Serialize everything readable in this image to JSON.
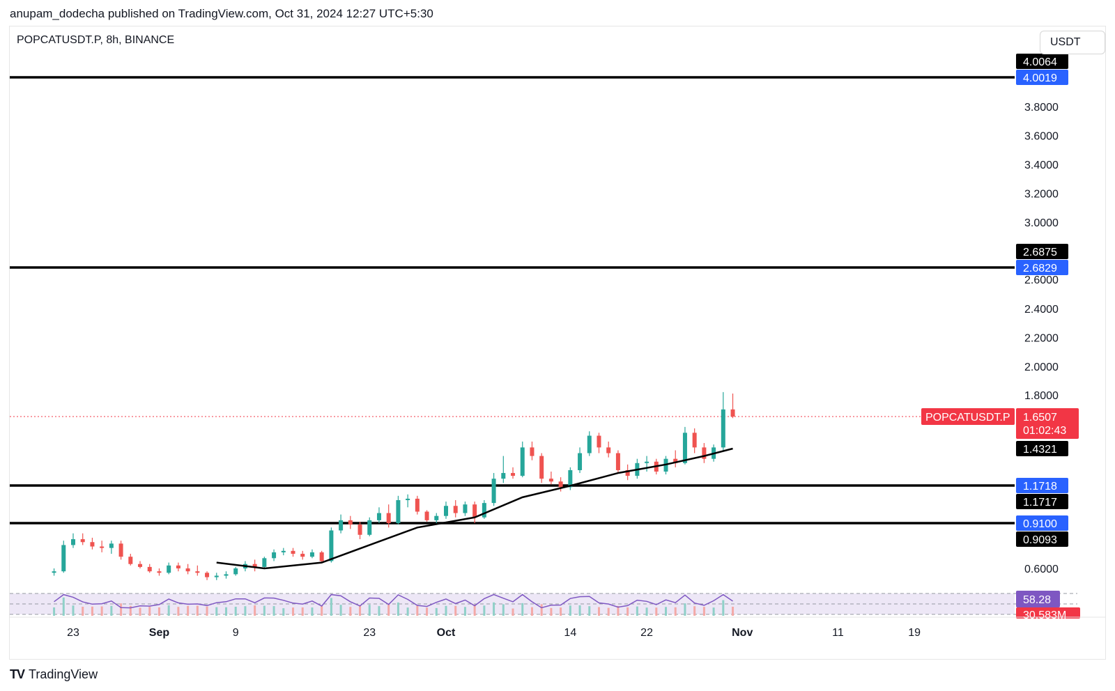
{
  "header": {
    "published_text": "anupam_dodecha published on TradingView.com, Oct 31, 2024 12:27 UTC+5:30"
  },
  "chart": {
    "symbol_line": "POPCATUSDT.P, 8h, BINANCE",
    "currency": "USDT"
  },
  "footer": {
    "logo": "TV",
    "brand": "TradingView"
  },
  "colors": {
    "up": "#26a69a",
    "down": "#ef5350",
    "ma": "#000000",
    "level": "#000000",
    "blue_tag": "#2962ff",
    "black_tag": "#000000",
    "last_price": "#f23645",
    "rsi": "#7e57c2",
    "rsi_ma": "#f7e14a",
    "rsi_bg": "#ede7f6"
  },
  "chart_data": {
    "type": "candlestick",
    "ylim": [
      0.5,
      4.15
    ],
    "y_ticks": [
      "3.8000",
      "3.6000",
      "3.4000",
      "3.2000",
      "3.0000",
      "2.6000",
      "2.4000",
      "2.2000",
      "2.0000",
      "1.8000",
      "0.6000"
    ],
    "x_ticks": [
      {
        "label": "23",
        "bold": false,
        "date": "2024-08-23"
      },
      {
        "label": "Sep",
        "bold": true,
        "date": "2024-09-01"
      },
      {
        "label": "9",
        "bold": false,
        "date": "2024-09-09"
      },
      {
        "label": "23",
        "bold": false,
        "date": "2024-09-23"
      },
      {
        "label": "Oct",
        "bold": true,
        "date": "2024-10-01"
      },
      {
        "label": "14",
        "bold": false,
        "date": "2024-10-14"
      },
      {
        "label": "22",
        "bold": false,
        "date": "2024-10-22"
      },
      {
        "label": "Nov",
        "bold": true,
        "date": "2024-11-01"
      },
      {
        "label": "11",
        "bold": false,
        "date": "2024-11-11"
      },
      {
        "label": "19",
        "bold": false,
        "date": "2024-11-19"
      }
    ],
    "horizontal_levels": [
      {
        "value": 4.0019,
        "tags": [
          {
            "text": "4.0064",
            "style": "black"
          },
          {
            "text": "4.0019",
            "style": "blue"
          }
        ]
      },
      {
        "value": 2.6829,
        "tags": [
          {
            "text": "2.6875",
            "style": "black"
          },
          {
            "text": "2.6829",
            "style": "blue"
          }
        ]
      },
      {
        "value": 1.1718,
        "tags": [
          {
            "text": "1.1718",
            "style": "blue"
          },
          {
            "text": "1.1717",
            "style": "black"
          }
        ]
      },
      {
        "value": 0.91,
        "tags": [
          {
            "text": "0.9100",
            "style": "blue"
          },
          {
            "text": "0.9093",
            "style": "black"
          }
        ]
      }
    ],
    "last_price": {
      "value": 1.6507,
      "symbol": "POPCATUSDT.P",
      "text": "1.6507",
      "countdown": "01:02:43"
    },
    "moving_average": {
      "last_text": "1.4321",
      "last_value": 1.4321
    },
    "rsi": {
      "value_text": "58.28"
    },
    "volume": {
      "value_text": "30.583M"
    },
    "candles": [
      {
        "date": "2024-08-21",
        "o": 0.57,
        "h": 0.6,
        "l": 0.55,
        "c": 0.58
      },
      {
        "date": "2024-08-22",
        "o": 0.58,
        "h": 0.79,
        "l": 0.57,
        "c": 0.76
      },
      {
        "date": "2024-08-23",
        "o": 0.76,
        "h": 0.84,
        "l": 0.74,
        "c": 0.8
      },
      {
        "date": "2024-08-24",
        "o": 0.8,
        "h": 0.84,
        "l": 0.76,
        "c": 0.78
      },
      {
        "date": "2024-08-25",
        "o": 0.78,
        "h": 0.81,
        "l": 0.73,
        "c": 0.75
      },
      {
        "date": "2024-08-26",
        "o": 0.75,
        "h": 0.79,
        "l": 0.71,
        "c": 0.74
      },
      {
        "date": "2024-08-27",
        "o": 0.74,
        "h": 0.79,
        "l": 0.7,
        "c": 0.77
      },
      {
        "date": "2024-08-28",
        "o": 0.77,
        "h": 0.79,
        "l": 0.66,
        "c": 0.68
      },
      {
        "date": "2024-08-29",
        "o": 0.68,
        "h": 0.7,
        "l": 0.62,
        "c": 0.63
      },
      {
        "date": "2024-08-30",
        "o": 0.63,
        "h": 0.65,
        "l": 0.6,
        "c": 0.61
      },
      {
        "date": "2024-08-31",
        "o": 0.61,
        "h": 0.63,
        "l": 0.57,
        "c": 0.58
      },
      {
        "date": "2024-09-01",
        "o": 0.58,
        "h": 0.6,
        "l": 0.55,
        "c": 0.57
      },
      {
        "date": "2024-09-02",
        "o": 0.57,
        "h": 0.64,
        "l": 0.56,
        "c": 0.62
      },
      {
        "date": "2024-09-03",
        "o": 0.62,
        "h": 0.64,
        "l": 0.58,
        "c": 0.6
      },
      {
        "date": "2024-09-04",
        "o": 0.6,
        "h": 0.63,
        "l": 0.56,
        "c": 0.58
      },
      {
        "date": "2024-09-05",
        "o": 0.58,
        "h": 0.62,
        "l": 0.55,
        "c": 0.57
      },
      {
        "date": "2024-09-06",
        "o": 0.57,
        "h": 0.58,
        "l": 0.52,
        "c": 0.54
      },
      {
        "date": "2024-09-07",
        "o": 0.54,
        "h": 0.57,
        "l": 0.52,
        "c": 0.55
      },
      {
        "date": "2024-09-08",
        "o": 0.55,
        "h": 0.58,
        "l": 0.53,
        "c": 0.56
      },
      {
        "date": "2024-09-09",
        "o": 0.56,
        "h": 0.61,
        "l": 0.55,
        "c": 0.6
      },
      {
        "date": "2024-09-10",
        "o": 0.6,
        "h": 0.65,
        "l": 0.58,
        "c": 0.63
      },
      {
        "date": "2024-09-11",
        "o": 0.63,
        "h": 0.66,
        "l": 0.58,
        "c": 0.61
      },
      {
        "date": "2024-09-12",
        "o": 0.61,
        "h": 0.68,
        "l": 0.6,
        "c": 0.67
      },
      {
        "date": "2024-09-13",
        "o": 0.67,
        "h": 0.73,
        "l": 0.65,
        "c": 0.71
      },
      {
        "date": "2024-09-14",
        "o": 0.71,
        "h": 0.74,
        "l": 0.69,
        "c": 0.72
      },
      {
        "date": "2024-09-15",
        "o": 0.72,
        "h": 0.74,
        "l": 0.68,
        "c": 0.7
      },
      {
        "date": "2024-09-16",
        "o": 0.7,
        "h": 0.72,
        "l": 0.66,
        "c": 0.68
      },
      {
        "date": "2024-09-17",
        "o": 0.68,
        "h": 0.73,
        "l": 0.67,
        "c": 0.71
      },
      {
        "date": "2024-09-18",
        "o": 0.71,
        "h": 0.72,
        "l": 0.64,
        "c": 0.65
      },
      {
        "date": "2024-09-19",
        "o": 0.65,
        "h": 0.88,
        "l": 0.64,
        "c": 0.86
      },
      {
        "date": "2024-09-20",
        "o": 0.86,
        "h": 0.97,
        "l": 0.84,
        "c": 0.93
      },
      {
        "date": "2024-09-21",
        "o": 0.93,
        "h": 0.96,
        "l": 0.87,
        "c": 0.9
      },
      {
        "date": "2024-09-22",
        "o": 0.9,
        "h": 0.92,
        "l": 0.8,
        "c": 0.83
      },
      {
        "date": "2024-09-23",
        "o": 0.83,
        "h": 0.95,
        "l": 0.82,
        "c": 0.93
      },
      {
        "date": "2024-09-24",
        "o": 0.93,
        "h": 1.02,
        "l": 0.91,
        "c": 0.98
      },
      {
        "date": "2024-09-25",
        "o": 0.98,
        "h": 1.04,
        "l": 0.88,
        "c": 0.91
      },
      {
        "date": "2024-09-26",
        "o": 0.91,
        "h": 1.1,
        "l": 0.9,
        "c": 1.07
      },
      {
        "date": "2024-09-27",
        "o": 1.07,
        "h": 1.11,
        "l": 1.02,
        "c": 1.08
      },
      {
        "date": "2024-09-28",
        "o": 1.08,
        "h": 1.1,
        "l": 0.97,
        "c": 0.99
      },
      {
        "date": "2024-09-29",
        "o": 0.99,
        "h": 1.0,
        "l": 0.92,
        "c": 0.93
      },
      {
        "date": "2024-09-30",
        "o": 0.93,
        "h": 0.98,
        "l": 0.91,
        "c": 0.96
      },
      {
        "date": "2024-10-01",
        "o": 0.96,
        "h": 1.06,
        "l": 0.94,
        "c": 1.03
      },
      {
        "date": "2024-10-02",
        "o": 1.03,
        "h": 1.07,
        "l": 0.95,
        "c": 0.98
      },
      {
        "date": "2024-10-03",
        "o": 0.98,
        "h": 1.06,
        "l": 0.96,
        "c": 1.04
      },
      {
        "date": "2024-10-04",
        "o": 1.04,
        "h": 1.06,
        "l": 0.91,
        "c": 0.95
      },
      {
        "date": "2024-10-05",
        "o": 0.95,
        "h": 1.07,
        "l": 0.94,
        "c": 1.05
      },
      {
        "date": "2024-10-06",
        "o": 1.05,
        "h": 1.26,
        "l": 1.03,
        "c": 1.22
      },
      {
        "date": "2024-10-07",
        "o": 1.22,
        "h": 1.38,
        "l": 1.19,
        "c": 1.26
      },
      {
        "date": "2024-10-08",
        "o": 1.26,
        "h": 1.3,
        "l": 1.22,
        "c": 1.24
      },
      {
        "date": "2024-10-09",
        "o": 1.24,
        "h": 1.48,
        "l": 1.23,
        "c": 1.44
      },
      {
        "date": "2024-10-10",
        "o": 1.44,
        "h": 1.48,
        "l": 1.35,
        "c": 1.38
      },
      {
        "date": "2024-10-11",
        "o": 1.38,
        "h": 1.4,
        "l": 1.19,
        "c": 1.22
      },
      {
        "date": "2024-10-12",
        "o": 1.22,
        "h": 1.27,
        "l": 1.18,
        "c": 1.2
      },
      {
        "date": "2024-10-13",
        "o": 1.2,
        "h": 1.23,
        "l": 1.13,
        "c": 1.16
      },
      {
        "date": "2024-10-14",
        "o": 1.16,
        "h": 1.3,
        "l": 1.14,
        "c": 1.28
      },
      {
        "date": "2024-10-15",
        "o": 1.28,
        "h": 1.44,
        "l": 1.26,
        "c": 1.4
      },
      {
        "date": "2024-10-16",
        "o": 1.4,
        "h": 1.55,
        "l": 1.38,
        "c": 1.52
      },
      {
        "date": "2024-10-17",
        "o": 1.52,
        "h": 1.54,
        "l": 1.4,
        "c": 1.44
      },
      {
        "date": "2024-10-18",
        "o": 1.44,
        "h": 1.48,
        "l": 1.37,
        "c": 1.4
      },
      {
        "date": "2024-10-19",
        "o": 1.4,
        "h": 1.42,
        "l": 1.26,
        "c": 1.28
      },
      {
        "date": "2024-10-20",
        "o": 1.28,
        "h": 1.32,
        "l": 1.21,
        "c": 1.24
      },
      {
        "date": "2024-10-21",
        "o": 1.24,
        "h": 1.36,
        "l": 1.22,
        "c": 1.33
      },
      {
        "date": "2024-10-22",
        "o": 1.33,
        "h": 1.38,
        "l": 1.27,
        "c": 1.34
      },
      {
        "date": "2024-10-23",
        "o": 1.34,
        "h": 1.36,
        "l": 1.25,
        "c": 1.27
      },
      {
        "date": "2024-10-24",
        "o": 1.27,
        "h": 1.38,
        "l": 1.25,
        "c": 1.36
      },
      {
        "date": "2024-10-25",
        "o": 1.36,
        "h": 1.42,
        "l": 1.3,
        "c": 1.33
      },
      {
        "date": "2024-10-26",
        "o": 1.33,
        "h": 1.58,
        "l": 1.32,
        "c": 1.54
      },
      {
        "date": "2024-10-27",
        "o": 1.54,
        "h": 1.57,
        "l": 1.4,
        "c": 1.44
      },
      {
        "date": "2024-10-28",
        "o": 1.44,
        "h": 1.47,
        "l": 1.33,
        "c": 1.36
      },
      {
        "date": "2024-10-29",
        "o": 1.36,
        "h": 1.46,
        "l": 1.34,
        "c": 1.44
      },
      {
        "date": "2024-10-30",
        "o": 1.44,
        "h": 1.82,
        "l": 1.42,
        "c": 1.7
      },
      {
        "date": "2024-10-31",
        "o": 1.7,
        "h": 1.81,
        "l": 1.64,
        "c": 1.6507
      }
    ],
    "ma_points": [
      {
        "date": "2024-09-07",
        "v": 0.64
      },
      {
        "date": "2024-09-12",
        "v": 0.6
      },
      {
        "date": "2024-09-18",
        "v": 0.64
      },
      {
        "date": "2024-09-23",
        "v": 0.76
      },
      {
        "date": "2024-09-28",
        "v": 0.88
      },
      {
        "date": "2024-10-04",
        "v": 0.95
      },
      {
        "date": "2024-10-09",
        "v": 1.09
      },
      {
        "date": "2024-10-14",
        "v": 1.17
      },
      {
        "date": "2024-10-19",
        "v": 1.26
      },
      {
        "date": "2024-10-24",
        "v": 1.32
      },
      {
        "date": "2024-10-28",
        "v": 1.38
      },
      {
        "date": "2024-10-31",
        "v": 1.4321
      }
    ]
  }
}
